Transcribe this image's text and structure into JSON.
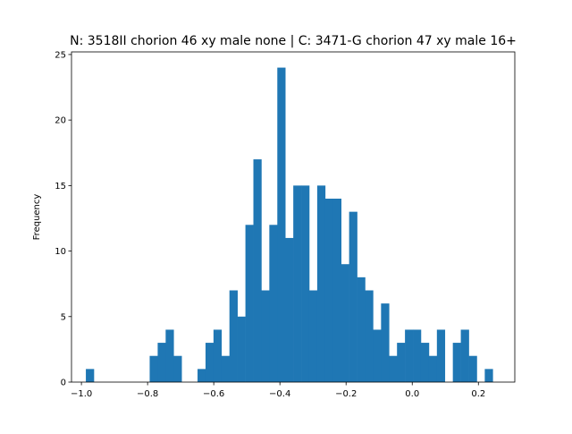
{
  "chart_data": {
    "type": "bar",
    "title": "N: 3518II chorion 46 xy male none | C: 3471-G chorion 47 xy male 16+",
    "xlabel": "",
    "ylabel": "Frequency",
    "xlim": [
      -1.03,
      0.31
    ],
    "ylim": [
      0,
      25.2
    ],
    "xticks": [
      -1.0,
      -0.8,
      -0.6,
      -0.4,
      -0.2,
      0.0,
      0.2
    ],
    "xtick_labels": [
      "−1.0",
      "−0.8",
      "−0.6",
      "−0.4",
      "−0.2",
      "0.0",
      "0.2"
    ],
    "yticks": [
      0,
      5,
      10,
      15,
      20,
      25
    ],
    "ytick_labels": [
      "0",
      "5",
      "10",
      "15",
      "20",
      "25"
    ],
    "grid": false,
    "bar_color": "#1f77b4",
    "bins": [
      {
        "x0": -0.9866,
        "x1": -0.9624,
        "value": 1
      },
      {
        "x0": -0.7937,
        "x1": -0.7695,
        "value": 2
      },
      {
        "x0": -0.7695,
        "x1": -0.7454,
        "value": 3
      },
      {
        "x0": -0.7454,
        "x1": -0.7213,
        "value": 4
      },
      {
        "x0": -0.7213,
        "x1": -0.6972,
        "value": 2
      },
      {
        "x0": -0.649,
        "x1": -0.6249,
        "value": 1
      },
      {
        "x0": -0.6249,
        "x1": -0.6008,
        "value": 3
      },
      {
        "x0": -0.6008,
        "x1": -0.5767,
        "value": 4
      },
      {
        "x0": -0.5767,
        "x1": -0.5526,
        "value": 2
      },
      {
        "x0": -0.5526,
        "x1": -0.5284,
        "value": 7
      },
      {
        "x0": -0.5284,
        "x1": -0.5043,
        "value": 5
      },
      {
        "x0": -0.5043,
        "x1": -0.4802,
        "value": 12
      },
      {
        "x0": -0.4802,
        "x1": -0.4561,
        "value": 17
      },
      {
        "x0": -0.4561,
        "x1": -0.432,
        "value": 7
      },
      {
        "x0": -0.432,
        "x1": -0.4079,
        "value": 12
      },
      {
        "x0": -0.4079,
        "x1": -0.3838,
        "value": 24
      },
      {
        "x0": -0.3838,
        "x1": -0.3596,
        "value": 11
      },
      {
        "x0": -0.3596,
        "x1": -0.3355,
        "value": 15
      },
      {
        "x0": -0.3355,
        "x1": -0.3114,
        "value": 15
      },
      {
        "x0": -0.3114,
        "x1": -0.2873,
        "value": 7
      },
      {
        "x0": -0.2873,
        "x1": -0.2632,
        "value": 15
      },
      {
        "x0": -0.2632,
        "x1": -0.239,
        "value": 14
      },
      {
        "x0": -0.239,
        "x1": -0.2149,
        "value": 14
      },
      {
        "x0": -0.2149,
        "x1": -0.1908,
        "value": 9
      },
      {
        "x0": -0.1908,
        "x1": -0.1667,
        "value": 13
      },
      {
        "x0": -0.1667,
        "x1": -0.1426,
        "value": 8
      },
      {
        "x0": -0.1426,
        "x1": -0.1185,
        "value": 7
      },
      {
        "x0": -0.1185,
        "x1": -0.0943,
        "value": 4
      },
      {
        "x0": -0.0943,
        "x1": -0.0702,
        "value": 6
      },
      {
        "x0": -0.0702,
        "x1": -0.0461,
        "value": 2
      },
      {
        "x0": -0.0461,
        "x1": -0.022,
        "value": 3
      },
      {
        "x0": -0.022,
        "x1": 0.0021,
        "value": 4
      },
      {
        "x0": 0.0021,
        "x1": 0.0262,
        "value": 4
      },
      {
        "x0": 0.0262,
        "x1": 0.0504,
        "value": 3
      },
      {
        "x0": 0.0504,
        "x1": 0.0745,
        "value": 2
      },
      {
        "x0": 0.0745,
        "x1": 0.0986,
        "value": 4
      },
      {
        "x0": 0.1227,
        "x1": 0.1468,
        "value": 3
      },
      {
        "x0": 0.1468,
        "x1": 0.171,
        "value": 4
      },
      {
        "x0": 0.171,
        "x1": 0.1951,
        "value": 2
      },
      {
        "x0": 0.2192,
        "x1": 0.2433,
        "value": 1
      }
    ]
  }
}
